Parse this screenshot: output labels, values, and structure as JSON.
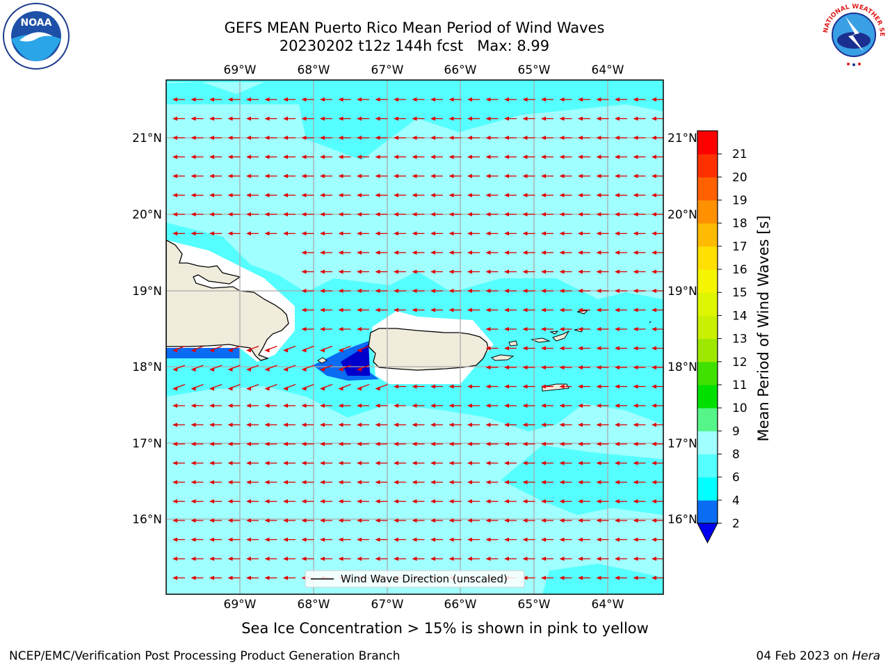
{
  "title": {
    "line1": "GEFS MEAN Puerto Rico Mean Period of Wind Waves",
    "line2": "20230202 t12z 144h fcst   Max: 8.99"
  },
  "map": {
    "lon_labels": [
      "69°W",
      "68°W",
      "67°W",
      "66°W",
      "65°W",
      "64°W"
    ],
    "lat_labels": [
      "21°N",
      "20°N",
      "19°N",
      "18°N",
      "17°N",
      "16°N"
    ],
    "legend_label": "Wind Wave Direction (unscaled)",
    "arrow_color": "#e00000",
    "land_color": "#efecdc"
  },
  "colorbar": {
    "label": "Mean Period of Wind Waves [s]",
    "ticks": [
      "2",
      "4",
      "6",
      "8",
      "9",
      "10",
      "11",
      "12",
      "13",
      "14",
      "15",
      "16",
      "17",
      "18",
      "19",
      "20",
      "21"
    ],
    "colors": [
      "#0a6bf3",
      "#00ffff",
      "#55ffff",
      "#a0ffff",
      "#55f58a",
      "#00e000",
      "#40e000",
      "#9ee800",
      "#c8f000",
      "#ddf500",
      "#f5f500",
      "#ffe000",
      "#ffbb00",
      "#ff9000",
      "#ff6000",
      "#ff3000",
      "#ff0000"
    ],
    "extend_color": "#0000ee"
  },
  "subnote": "Sea Ice Concentration > 15% is shown in pink to yellow",
  "footer": {
    "left": "NCEP/EMC/Verification Post Processing Product Generation Branch",
    "right_prefix": "04 Feb 2023 on ",
    "right_machine": "Hera"
  },
  "logos": {
    "noaa_text": "NOAA",
    "nws_text": "NATIONAL WEATHER SERVICE"
  }
}
